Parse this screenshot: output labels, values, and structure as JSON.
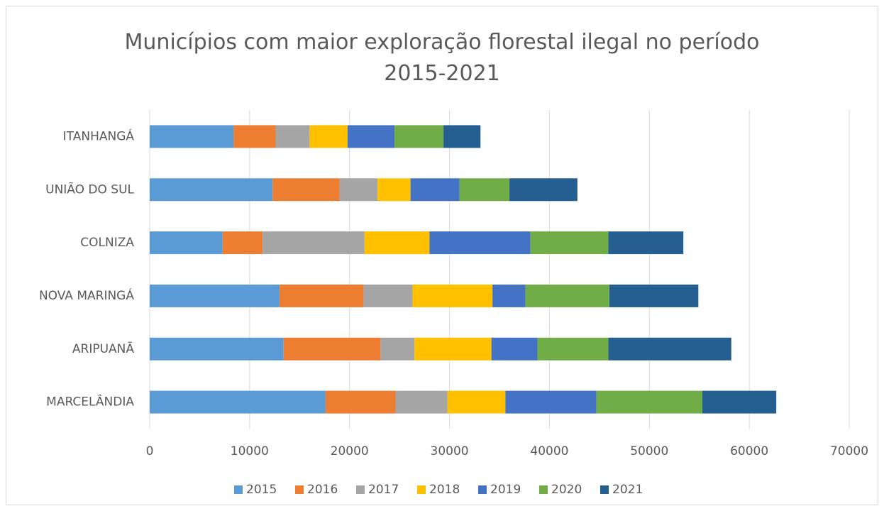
{
  "chart_data": {
    "type": "stacked-barh",
    "title": "Municípios com maior exploração florestal ilegal no período 2015-2021",
    "categories": [
      "ITANHANGÁ",
      "UNIÃO DO SUL",
      "COLNIZA",
      "NOVA MARINGÁ",
      "ARIPUANÃ",
      "MARCELÂNDIA"
    ],
    "series": [
      {
        "name": "2015",
        "color": "#5b9bd5",
        "values": [
          8400,
          12300,
          7300,
          13000,
          13400,
          17600
        ]
      },
      {
        "name": "2016",
        "color": "#ed7d31",
        "values": [
          4200,
          6700,
          4000,
          8400,
          9700,
          7000
        ]
      },
      {
        "name": "2017",
        "color": "#a5a5a5",
        "values": [
          3400,
          3800,
          10200,
          4900,
          3400,
          5200
        ]
      },
      {
        "name": "2018",
        "color": "#ffc000",
        "values": [
          3800,
          3300,
          6500,
          8000,
          7700,
          5800
        ]
      },
      {
        "name": "2019",
        "color": "#4472c4",
        "values": [
          4700,
          4900,
          10100,
          3300,
          4600,
          9100
        ]
      },
      {
        "name": "2020",
        "color": "#70ad47",
        "values": [
          4900,
          5000,
          7800,
          8400,
          7100,
          10600
        ]
      },
      {
        "name": "2021",
        "color": "#255e91",
        "values": [
          3700,
          6800,
          7500,
          8900,
          12300,
          7400
        ]
      }
    ],
    "xlim": [
      0,
      70000
    ],
    "xticks": [
      0,
      10000,
      20000,
      30000,
      40000,
      50000,
      60000,
      70000
    ],
    "grid": true,
    "legend": "bottom"
  }
}
